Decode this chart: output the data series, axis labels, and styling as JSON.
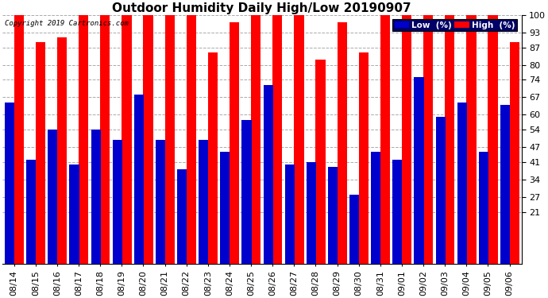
{
  "title": "Outdoor Humidity Daily High/Low 20190907",
  "copyright": "Copyright 2019 Cartronics.com",
  "categories": [
    "08/14",
    "08/15",
    "08/16",
    "08/17",
    "08/18",
    "08/19",
    "08/20",
    "08/21",
    "08/22",
    "08/23",
    "08/24",
    "08/25",
    "08/26",
    "08/27",
    "08/28",
    "08/29",
    "08/30",
    "08/31",
    "09/01",
    "09/02",
    "09/03",
    "09/04",
    "09/05",
    "09/06"
  ],
  "high_values": [
    100,
    89,
    91,
    100,
    100,
    100,
    100,
    100,
    100,
    85,
    97,
    100,
    100,
    100,
    82,
    97,
    85,
    100,
    100,
    100,
    100,
    100,
    100,
    89
  ],
  "low_values": [
    65,
    42,
    54,
    40,
    54,
    50,
    68,
    50,
    38,
    50,
    45,
    58,
    72,
    40,
    41,
    39,
    28,
    45,
    42,
    75,
    59,
    65,
    45,
    64
  ],
  "high_color": "#ff0000",
  "low_color": "#0000cc",
  "background_color": "#ffffff",
  "ylim_min": 21,
  "ylim_max": 100,
  "yticks": [
    21,
    27,
    34,
    41,
    47,
    54,
    60,
    67,
    74,
    80,
    87,
    93,
    100
  ],
  "grid_color": "#aaaaaa",
  "title_fontsize": 11,
  "tick_fontsize": 8,
  "legend_low_label": "Low  (%)",
  "legend_high_label": "High  (%)"
}
